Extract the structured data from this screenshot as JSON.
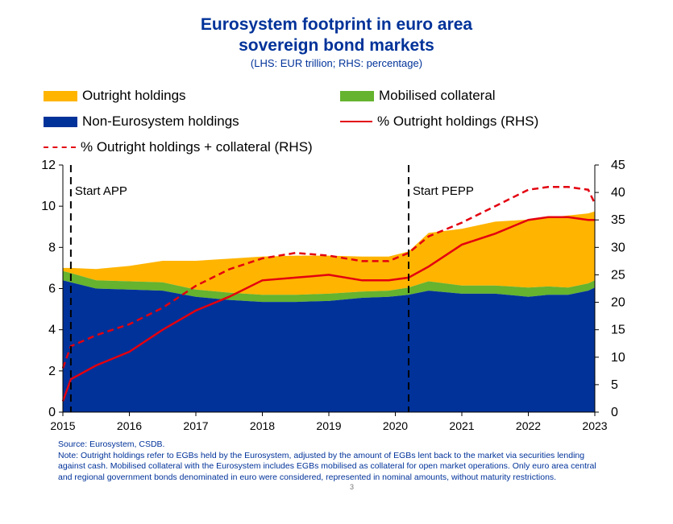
{
  "title_line1": "Eurosystem footprint in euro area",
  "title_line2": "sovereign bond markets",
  "subtitle": "(LHS: EUR trillion; RHS: percentage)",
  "legend": {
    "outright": "Outright holdings",
    "collateral": "Mobilised collateral",
    "non_eurosystem": "Non-Eurosystem holdings",
    "pct_outright": "% Outright holdings (RHS)",
    "pct_outright_collateral": "% Outright holdings + collateral (RHS)"
  },
  "annotations": [
    "Start APP",
    "Start PEPP"
  ],
  "footnote": {
    "source": "Source: Eurosystem, CSDB.",
    "note": "Note: Outright holdings refer to EGBs held by the Eurosystem, adjusted by the amount of EGBs lent back to the market via securities lending against cash. Mobilised collateral with the Eurosystem includes EGBs mobilised as collateral for open market operations. Only euro area central and regional government bonds denominated in euro were considered, represented in nominal amounts, without maturity restrictions."
  },
  "page_number": "3",
  "colors": {
    "outright": "#FFB400",
    "collateral": "#65B32E",
    "non_eurosystem": "#003299",
    "pct_line": "#E3000F",
    "text_blue": "#003299"
  },
  "chart_data": {
    "type": "area",
    "title": "Eurosystem footprint in euro area sovereign bond markets",
    "subtitle": "(LHS: EUR trillion; RHS: percentage)",
    "x_ticks": [
      "2015",
      "2016",
      "2017",
      "2018",
      "2019",
      "2020",
      "2021",
      "2022",
      "2023"
    ],
    "y_left": {
      "min": 0,
      "max": 12,
      "ticks": [
        "0",
        "2",
        "4",
        "6",
        "8",
        "10",
        "12"
      ]
    },
    "y_right": {
      "min": 0,
      "max": 45,
      "ticks": [
        "0",
        "5",
        "10",
        "15",
        "20",
        "25",
        "30",
        "35",
        "40",
        "45"
      ]
    },
    "vlines": [
      {
        "x": 2015.12,
        "label": "Start APP"
      },
      {
        "x": 2020.2,
        "label": "Start PEPP"
      }
    ],
    "x": [
      2015.0,
      2015.12,
      2015.5,
      2016.0,
      2016.5,
      2017.0,
      2017.5,
      2018.0,
      2018.5,
      2019.0,
      2019.5,
      2019.9,
      2020.2,
      2020.5,
      2021.0,
      2021.5,
      2022.0,
      2022.3,
      2022.6,
      2022.9,
      2023.0
    ],
    "series": [
      {
        "name": "Non-Eurosystem holdings",
        "values": [
          6.4,
          6.3,
          6.0,
          5.95,
          5.9,
          5.6,
          5.45,
          5.35,
          5.35,
          5.4,
          5.55,
          5.6,
          5.7,
          5.9,
          5.75,
          5.75,
          5.6,
          5.7,
          5.7,
          5.9,
          6.05
        ]
      },
      {
        "name": "Mobilised collateral",
        "values": [
          0.45,
          0.45,
          0.4,
          0.4,
          0.4,
          0.35,
          0.35,
          0.35,
          0.35,
          0.35,
          0.3,
          0.3,
          0.35,
          0.45,
          0.4,
          0.4,
          0.45,
          0.4,
          0.35,
          0.35,
          0.35
        ]
      },
      {
        "name": "Outright holdings",
        "values": [
          0.15,
          0.25,
          0.55,
          0.75,
          1.05,
          1.4,
          1.65,
          1.85,
          1.9,
          1.85,
          1.7,
          1.65,
          1.75,
          2.35,
          2.75,
          3.1,
          3.3,
          3.35,
          3.5,
          3.4,
          3.35
        ]
      },
      {
        "name": "% Outright holdings (RHS)",
        "values": [
          2.0,
          6,
          8.5,
          11,
          15,
          18.5,
          21,
          24,
          24.5,
          25,
          24,
          24,
          24.5,
          26.5,
          30.5,
          32.5,
          35,
          35.5,
          35.5,
          35,
          35
        ]
      },
      {
        "name": "% Outright holdings + collateral (RHS)",
        "values": [
          8,
          12,
          14,
          16,
          19,
          23,
          26,
          28,
          29,
          28.5,
          27.5,
          27.5,
          29,
          32,
          34.5,
          37.5,
          40.5,
          41,
          41,
          40.5,
          38
        ]
      }
    ]
  }
}
